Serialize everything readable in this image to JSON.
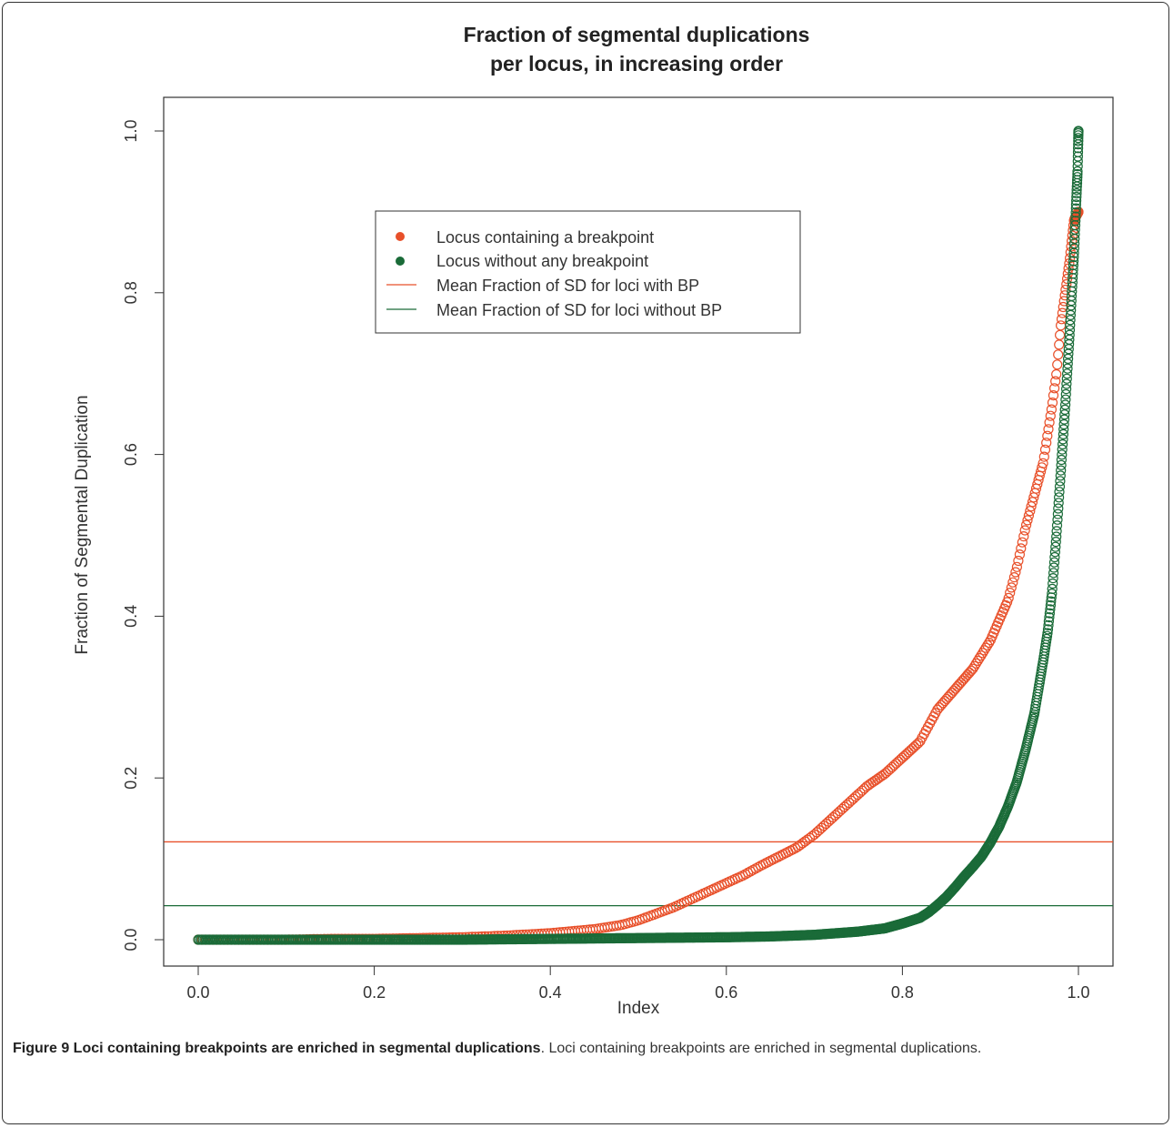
{
  "chart_data": {
    "type": "scatter",
    "title_lines": [
      "Fraction of segmental duplications",
      "per locus, in increasing order"
    ],
    "xlabel": "Index",
    "ylabel": "Fraction of Segmental Duplication",
    "xlim": [
      0,
      1
    ],
    "ylim": [
      0,
      1
    ],
    "xticks": [
      "0.0",
      "0.2",
      "0.4",
      "0.6",
      "0.8",
      "1.0"
    ],
    "yticks": [
      "0.0",
      "0.2",
      "0.4",
      "0.6",
      "0.8",
      "1.0"
    ],
    "grid": false,
    "legend_position": "upper-center",
    "series": [
      {
        "name": "Locus containing a breakpoint",
        "color": "#e8502a",
        "marker": "open-circle",
        "points": [
          [
            0.0,
            0.0
          ],
          [
            0.05,
            0.0
          ],
          [
            0.1,
            0.0
          ],
          [
            0.15,
            0.001
          ],
          [
            0.2,
            0.001
          ],
          [
            0.25,
            0.002
          ],
          [
            0.3,
            0.003
          ],
          [
            0.35,
            0.005
          ],
          [
            0.4,
            0.008
          ],
          [
            0.45,
            0.013
          ],
          [
            0.48,
            0.018
          ],
          [
            0.5,
            0.024
          ],
          [
            0.52,
            0.032
          ],
          [
            0.54,
            0.04
          ],
          [
            0.56,
            0.05
          ],
          [
            0.58,
            0.06
          ],
          [
            0.6,
            0.07
          ],
          [
            0.62,
            0.08
          ],
          [
            0.64,
            0.092
          ],
          [
            0.66,
            0.103
          ],
          [
            0.68,
            0.114
          ],
          [
            0.7,
            0.13
          ],
          [
            0.72,
            0.15
          ],
          [
            0.74,
            0.17
          ],
          [
            0.76,
            0.19
          ],
          [
            0.78,
            0.205
          ],
          [
            0.8,
            0.225
          ],
          [
            0.82,
            0.245
          ],
          [
            0.84,
            0.285
          ],
          [
            0.86,
            0.31
          ],
          [
            0.88,
            0.335
          ],
          [
            0.9,
            0.37
          ],
          [
            0.91,
            0.395
          ],
          [
            0.92,
            0.42
          ],
          [
            0.93,
            0.46
          ],
          [
            0.94,
            0.51
          ],
          [
            0.95,
            0.55
          ],
          [
            0.96,
            0.59
          ],
          [
            0.97,
            0.66
          ],
          [
            0.975,
            0.7
          ],
          [
            0.98,
            0.76
          ],
          [
            0.985,
            0.8
          ],
          [
            0.99,
            0.84
          ],
          [
            0.995,
            0.89
          ],
          [
            1.0,
            0.9
          ]
        ]
      },
      {
        "name": "Locus without any breakpoint",
        "color": "#1a6b38",
        "marker": "open-circle",
        "points": [
          [
            0.0,
            0.0
          ],
          [
            0.1,
            0.0
          ],
          [
            0.2,
            0.0
          ],
          [
            0.3,
            0.0
          ],
          [
            0.4,
            0.001
          ],
          [
            0.5,
            0.002
          ],
          [
            0.6,
            0.003
          ],
          [
            0.65,
            0.004
          ],
          [
            0.7,
            0.006
          ],
          [
            0.75,
            0.01
          ],
          [
            0.78,
            0.014
          ],
          [
            0.8,
            0.02
          ],
          [
            0.82,
            0.027
          ],
          [
            0.83,
            0.034
          ],
          [
            0.84,
            0.043
          ],
          [
            0.85,
            0.053
          ],
          [
            0.86,
            0.065
          ],
          [
            0.87,
            0.078
          ],
          [
            0.88,
            0.09
          ],
          [
            0.89,
            0.103
          ],
          [
            0.9,
            0.12
          ],
          [
            0.91,
            0.14
          ],
          [
            0.92,
            0.165
          ],
          [
            0.93,
            0.195
          ],
          [
            0.94,
            0.235
          ],
          [
            0.95,
            0.28
          ],
          [
            0.96,
            0.345
          ],
          [
            0.965,
            0.38
          ],
          [
            0.97,
            0.43
          ],
          [
            0.975,
            0.5
          ],
          [
            0.98,
            0.58
          ],
          [
            0.985,
            0.66
          ],
          [
            0.99,
            0.75
          ],
          [
            0.995,
            0.85
          ],
          [
            0.997,
            0.9
          ],
          [
            0.999,
            0.95
          ],
          [
            1.0,
            1.0
          ]
        ]
      }
    ],
    "hlines": [
      {
        "name": "Mean Fraction of SD for loci with BP",
        "y": 0.121,
        "color": "#e8502a"
      },
      {
        "name": "Mean Fraction of SD for loci without BP",
        "y": 0.042,
        "color": "#1a6b38"
      }
    ]
  },
  "caption": {
    "bold": "Figure 9 Loci containing breakpoints are enriched in segmental duplications",
    "text": ". Loci containing breakpoints are enriched in segmental duplications."
  }
}
